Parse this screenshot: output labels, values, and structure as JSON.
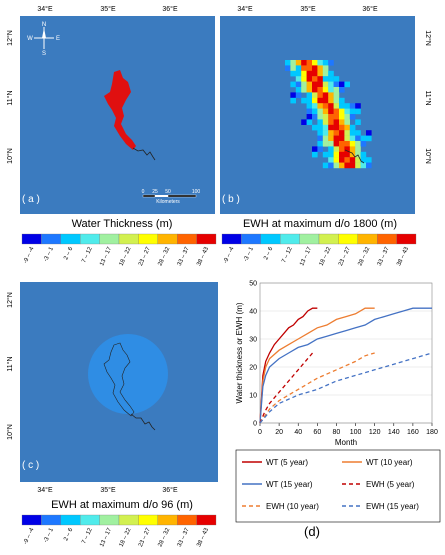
{
  "maps": {
    "a": {
      "label": "( a )",
      "top_ticks": [
        "34°E",
        "35°E",
        "36°E"
      ],
      "side_ticks": [
        "12°N",
        "11°N",
        "10°N"
      ],
      "compass": {
        "n": "N",
        "s": "S",
        "e": "E",
        "w": "W"
      },
      "scalebar": {
        "ticks": [
          "0",
          "25",
          "50",
          "100"
        ],
        "unit": "Kilometers"
      },
      "caption": "Water Thickness (m)"
    },
    "b": {
      "label": "( b )",
      "top_ticks": [
        "34°E",
        "35°E",
        "36°E"
      ],
      "side_ticks": [
        "12°N",
        "11°N",
        "10°N"
      ],
      "caption": "EWH at maximum d/o 1800 (m)"
    },
    "c": {
      "label": "( c )",
      "bottom_ticks": [
        "34°E",
        "35°E",
        "36°E"
      ],
      "side_ticks": [
        "12°N",
        "11°N",
        "10°N"
      ],
      "caption": "EWH at maximum d/o 96 (m)"
    }
  },
  "colorbar": {
    "labels": [
      "-9 – -4",
      "-3 – 1",
      "2 – 6",
      "7 – 12",
      "13 – 17",
      "18 – 22",
      "23 – 27",
      "28 – 32",
      "33 – 37",
      "38 – 43"
    ],
    "colors": [
      "#0000e6",
      "#1e78ff",
      "#00c8ff",
      "#50ebeb",
      "#a0f0a0",
      "#d2f050",
      "#ffff00",
      "#ffb400",
      "#ff6400",
      "#e60000"
    ]
  },
  "panel_d_label": "(d)",
  "chart_data": {
    "type": "line",
    "xlabel": "Month",
    "ylabel": "Water thickness or EWH (m)",
    "xlim": [
      0,
      180
    ],
    "ylim": [
      0,
      50
    ],
    "xticks": [
      0,
      20,
      40,
      60,
      80,
      100,
      120,
      140,
      160,
      180
    ],
    "yticks": [
      0,
      10,
      20,
      30,
      40,
      50
    ],
    "series": [
      {
        "name": "WT (5 year)",
        "color": "#c00000",
        "dash": "solid",
        "x": [
          0,
          3,
          6,
          10,
          15,
          20,
          25,
          30,
          35,
          40,
          45,
          50,
          55,
          60
        ],
        "y": [
          0,
          17,
          22,
          25,
          28,
          30,
          32,
          34,
          35,
          37,
          38,
          40,
          41,
          41
        ]
      },
      {
        "name": "WT (10 year)",
        "color": "#ed7d31",
        "dash": "solid",
        "x": [
          0,
          3,
          6,
          10,
          20,
          30,
          40,
          50,
          60,
          70,
          80,
          90,
          100,
          110,
          120
        ],
        "y": [
          0,
          15,
          20,
          23,
          26,
          28,
          30,
          32,
          34,
          35,
          37,
          38,
          39,
          41,
          41
        ]
      },
      {
        "name": "WT (15 year)",
        "color": "#4472c4",
        "dash": "solid",
        "x": [
          0,
          3,
          6,
          10,
          20,
          30,
          40,
          50,
          60,
          70,
          80,
          90,
          100,
          110,
          120,
          130,
          140,
          150,
          160,
          170,
          180
        ],
        "y": [
          0,
          13,
          17,
          20,
          23,
          25,
          27,
          28,
          30,
          31,
          32,
          33,
          34,
          35,
          37,
          38,
          39,
          40,
          41,
          41,
          41
        ]
      },
      {
        "name": "EWH (5 year)",
        "color": "#c00000",
        "dash": "dashed",
        "x": [
          0,
          5,
          10,
          20,
          30,
          40,
          50,
          55
        ],
        "y": [
          0,
          4,
          7,
          11,
          15,
          19,
          23,
          25
        ]
      },
      {
        "name": "EWH (10 year)",
        "color": "#ed7d31",
        "dash": "dashed",
        "x": [
          0,
          10,
          20,
          40,
          60,
          80,
          100,
          110,
          120
        ],
        "y": [
          0,
          5,
          8,
          12,
          16,
          19,
          22,
          24,
          25
        ]
      },
      {
        "name": "EWH (15 year)",
        "color": "#4472c4",
        "dash": "dashed",
        "x": [
          0,
          10,
          20,
          40,
          60,
          80,
          100,
          120,
          140,
          160,
          170,
          180
        ],
        "y": [
          0,
          4,
          7,
          10,
          12,
          15,
          17,
          19,
          21,
          23,
          24,
          25
        ]
      }
    ]
  }
}
